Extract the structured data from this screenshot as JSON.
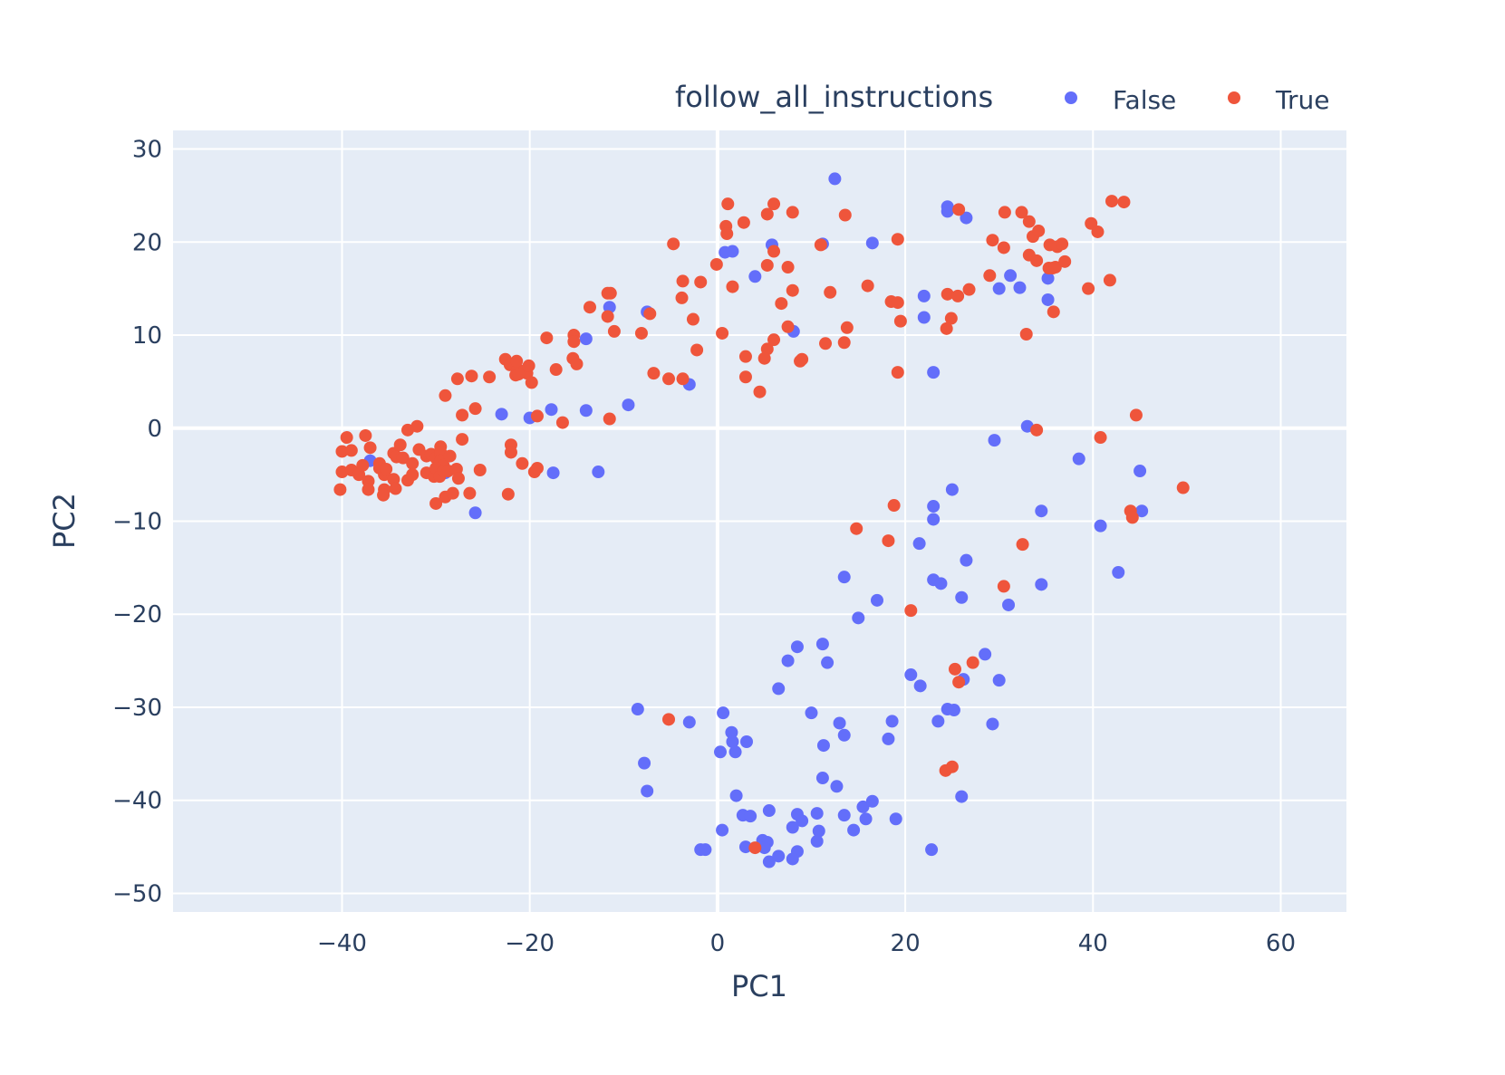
{
  "chart_data": {
    "type": "scatter",
    "title": "",
    "xlabel": "PC1",
    "ylabel": "PC2",
    "xlim": [
      -58,
      67
    ],
    "ylim": [
      -52,
      32
    ],
    "xticks": [
      -40,
      -20,
      0,
      20,
      40,
      60
    ],
    "yticks": [
      30,
      20,
      10,
      0,
      -10,
      -20,
      -30,
      -40,
      -50
    ],
    "xtick_labels": [
      "−40",
      "−20",
      "0",
      "20",
      "40",
      "60"
    ],
    "ytick_labels": [
      "30",
      "20",
      "10",
      "0",
      "−10",
      "−20",
      "−30",
      "−40",
      "−50"
    ],
    "grid": true,
    "legend": {
      "title": "follow_all_instructions",
      "placement": "top-right"
    },
    "series": [
      {
        "name": "False",
        "color": "#636efa",
        "points": [
          [
            12.5,
            26.8
          ],
          [
            24.5,
            23.8
          ],
          [
            24.5,
            23.3
          ],
          [
            26.5,
            22.6
          ],
          [
            5.8,
            19.7
          ],
          [
            11.2,
            19.8
          ],
          [
            16.5,
            19.9
          ],
          [
            0.8,
            18.9
          ],
          [
            1.6,
            19.0
          ],
          [
            4,
            16.3
          ],
          [
            22,
            14.2
          ],
          [
            30,
            15
          ],
          [
            31.2,
            16.4
          ],
          [
            32.2,
            15.1
          ],
          [
            35.2,
            16.1
          ],
          [
            35.2,
            13.8
          ],
          [
            22,
            11.9
          ],
          [
            8.1,
            10.4
          ],
          [
            -11.5,
            13
          ],
          [
            -7.5,
            12.5
          ],
          [
            -14,
            9.6
          ],
          [
            -3,
            4.7
          ],
          [
            23,
            6
          ],
          [
            -23,
            1.5
          ],
          [
            -20,
            1.1
          ],
          [
            -17.7,
            2
          ],
          [
            -14,
            1.9
          ],
          [
            -9.5,
            2.5
          ],
          [
            -17.5,
            -4.8
          ],
          [
            -12.7,
            -4.7
          ],
          [
            -37,
            -3.5
          ],
          [
            -29,
            -4.8
          ],
          [
            -25.8,
            -9.1
          ],
          [
            33,
            0.2
          ],
          [
            29.5,
            -1.3
          ],
          [
            38.5,
            -3.3
          ],
          [
            45,
            -4.6
          ],
          [
            34.5,
            -8.9
          ],
          [
            40.8,
            -10.5
          ],
          [
            45.2,
            -8.9
          ],
          [
            23,
            -8.4
          ],
          [
            23,
            -9.8
          ],
          [
            25,
            -6.6
          ],
          [
            21.5,
            -12.4
          ],
          [
            26.5,
            -14.2
          ],
          [
            13.5,
            -16
          ],
          [
            17,
            -18.5
          ],
          [
            15,
            -20.4
          ],
          [
            23,
            -16.3
          ],
          [
            23.8,
            -16.7
          ],
          [
            26,
            -18.2
          ],
          [
            31,
            -19
          ],
          [
            34.5,
            -16.8
          ],
          [
            42.7,
            -15.5
          ],
          [
            8.5,
            -23.5
          ],
          [
            11.2,
            -23.2
          ],
          [
            7.5,
            -25
          ],
          [
            11.7,
            -25.2
          ],
          [
            6.5,
            -28
          ],
          [
            20.6,
            -26.5
          ],
          [
            21.6,
            -27.7
          ],
          [
            26.2,
            -27
          ],
          [
            28.5,
            -24.3
          ],
          [
            30,
            -27.1
          ],
          [
            -8.5,
            -30.2
          ],
          [
            -3,
            -31.6
          ],
          [
            0.6,
            -30.6
          ],
          [
            10,
            -30.6
          ],
          [
            13,
            -31.7
          ],
          [
            13.5,
            -33
          ],
          [
            18.6,
            -31.5
          ],
          [
            23.5,
            -31.5
          ],
          [
            24.5,
            -30.2
          ],
          [
            25.2,
            -30.3
          ],
          [
            29.3,
            -31.8
          ],
          [
            1.5,
            -32.7
          ],
          [
            1.6,
            -33.7
          ],
          [
            3.1,
            -33.7
          ],
          [
            1.9,
            -34.8
          ],
          [
            0.3,
            -34.8
          ],
          [
            11.3,
            -34.1
          ],
          [
            18.2,
            -33.4
          ],
          [
            -7.8,
            -36
          ],
          [
            -7.5,
            -39
          ],
          [
            11.2,
            -37.6
          ],
          [
            12.7,
            -38.5
          ],
          [
            2,
            -39.5
          ],
          [
            26,
            -39.6
          ],
          [
            2.7,
            -41.6
          ],
          [
            3.5,
            -41.7
          ],
          [
            5.5,
            -41.1
          ],
          [
            8.5,
            -41.5
          ],
          [
            10.6,
            -41.4
          ],
          [
            13.5,
            -41.6
          ],
          [
            15.5,
            -40.7
          ],
          [
            16.5,
            -40.1
          ],
          [
            9,
            -42.2
          ],
          [
            8,
            -42.9
          ],
          [
            15.8,
            -42
          ],
          [
            19,
            -42
          ],
          [
            0.5,
            -43.2
          ],
          [
            10.8,
            -43.3
          ],
          [
            14.5,
            -43.2
          ],
          [
            -1.8,
            -45.3
          ],
          [
            -1.3,
            -45.3
          ],
          [
            3,
            -45
          ],
          [
            4.8,
            -44.3
          ],
          [
            5.3,
            -44.5
          ],
          [
            10.6,
            -44.4
          ],
          [
            5,
            -45.1
          ],
          [
            8.5,
            -45.5
          ],
          [
            6.5,
            -46
          ],
          [
            5.5,
            -46.6
          ],
          [
            8,
            -46.3
          ],
          [
            22.8,
            -45.3
          ]
        ]
      },
      {
        "name": "True",
        "color": "#ef553b",
        "points": [
          [
            1.1,
            24.1
          ],
          [
            6,
            24.1
          ],
          [
            5.3,
            23
          ],
          [
            8,
            23.2
          ],
          [
            13.6,
            22.9
          ],
          [
            0.9,
            21.7
          ],
          [
            1,
            20.9
          ],
          [
            2.8,
            22.1
          ],
          [
            -4.7,
            19.8
          ],
          [
            19.2,
            20.3
          ],
          [
            6,
            19
          ],
          [
            11,
            19.7
          ],
          [
            -0.1,
            17.6
          ],
          [
            5.3,
            17.5
          ],
          [
            7.5,
            17.3
          ],
          [
            -3.7,
            15.8
          ],
          [
            -1.8,
            15.7
          ],
          [
            1.6,
            15.2
          ],
          [
            8,
            14.8
          ],
          [
            12,
            14.6
          ],
          [
            16,
            15.3
          ],
          [
            18.5,
            13.6
          ],
          [
            19.2,
            13.5
          ],
          [
            19.5,
            11.5
          ],
          [
            -11.7,
            14.5
          ],
          [
            -11.4,
            14.5
          ],
          [
            -13.6,
            13
          ],
          [
            -3.8,
            14
          ],
          [
            -7.2,
            12.3
          ],
          [
            -11.7,
            12
          ],
          [
            -2.6,
            11.7
          ],
          [
            -11,
            10.4
          ],
          [
            -8.1,
            10.2
          ],
          [
            6.8,
            13.4
          ],
          [
            7.5,
            10.9
          ],
          [
            -15.3,
            10
          ],
          [
            -15.3,
            9.3
          ],
          [
            -18.2,
            9.7
          ],
          [
            -2.2,
            8.4
          ],
          [
            0.5,
            10.2
          ],
          [
            3,
            7.7
          ],
          [
            5.3,
            8.5
          ],
          [
            5,
            7.5
          ],
          [
            6,
            9.5
          ],
          [
            8.8,
            7.2
          ],
          [
            9,
            7.4
          ],
          [
            11.5,
            9.1
          ],
          [
            13.5,
            9.2
          ],
          [
            13.8,
            10.8
          ],
          [
            19.2,
            6
          ],
          [
            -22.6,
            7.4
          ],
          [
            -22.1,
            6.8
          ],
          [
            -21.3,
            6.3
          ],
          [
            -21.4,
            7.2
          ],
          [
            -21.5,
            5.7
          ],
          [
            -20.5,
            6.2
          ],
          [
            -20.3,
            5.9
          ],
          [
            -20.1,
            6.7
          ],
          [
            -21.2,
            5.8
          ],
          [
            -19.8,
            4.9
          ],
          [
            -17.2,
            6.3
          ],
          [
            -15.4,
            7.5
          ],
          [
            -15,
            6.9
          ],
          [
            -24.3,
            5.5
          ],
          [
            -26.2,
            5.6
          ],
          [
            -27.7,
            5.3
          ],
          [
            -6.8,
            5.9
          ],
          [
            -5.2,
            5.3
          ],
          [
            -3.7,
            5.3
          ],
          [
            3,
            5.5
          ],
          [
            4.5,
            3.9
          ],
          [
            -29,
            3.5
          ],
          [
            -27.2,
            1.4
          ],
          [
            -25.8,
            2.1
          ],
          [
            -19.2,
            1.3
          ],
          [
            -16.5,
            0.6
          ],
          [
            -11.5,
            1
          ],
          [
            -32,
            0.2
          ],
          [
            -33,
            -0.2
          ],
          [
            -39.5,
            -1
          ],
          [
            -37.5,
            -0.8
          ],
          [
            -40,
            -2.5
          ],
          [
            -39,
            -2.4
          ],
          [
            -37,
            -2.1
          ],
          [
            -36,
            -3.8
          ],
          [
            -34.5,
            -2.7
          ],
          [
            -34.2,
            -3.1
          ],
          [
            -33.8,
            -1.8
          ],
          [
            -33.5,
            -3.2
          ],
          [
            -32.5,
            -3.8
          ],
          [
            -31.8,
            -2.3
          ],
          [
            -31,
            -3
          ],
          [
            -30.5,
            -2.8
          ],
          [
            -30,
            -3.2
          ],
          [
            -29.5,
            -2
          ],
          [
            -29.5,
            -2.6
          ],
          [
            -29.5,
            -3.5
          ],
          [
            -29.2,
            -4
          ],
          [
            -28.5,
            -3
          ],
          [
            -27.2,
            -1.2
          ],
          [
            -22,
            -1.8
          ],
          [
            -22,
            -2.6
          ],
          [
            -20.8,
            -3.8
          ],
          [
            -40,
            -4.7
          ],
          [
            -39,
            -4.5
          ],
          [
            -38.2,
            -5
          ],
          [
            -37.8,
            -4
          ],
          [
            -37.2,
            -5.7
          ],
          [
            -36,
            -4.3
          ],
          [
            -35.5,
            -5
          ],
          [
            -35.3,
            -4.4
          ],
          [
            -34.5,
            -5.5
          ],
          [
            -35.5,
            -6.6
          ],
          [
            -34.3,
            -6.5
          ],
          [
            -33,
            -5.6
          ],
          [
            -32.5,
            -5
          ],
          [
            -31,
            -4.8
          ],
          [
            -30.2,
            -5.2
          ],
          [
            -30,
            -4.3
          ],
          [
            -29.6,
            -5.2
          ],
          [
            -29.2,
            -4.6
          ],
          [
            -28.7,
            -4.6
          ],
          [
            -27.8,
            -4.4
          ],
          [
            -27.6,
            -5.4
          ],
          [
            -25.3,
            -4.5
          ],
          [
            -19.5,
            -4.7
          ],
          [
            -19.2,
            -4.3
          ],
          [
            -40.2,
            -6.6
          ],
          [
            -37.2,
            -6.6
          ],
          [
            -35.6,
            -7.2
          ],
          [
            -30,
            -8.1
          ],
          [
            -29,
            -7.4
          ],
          [
            -28.2,
            -7
          ],
          [
            -26.4,
            -7
          ],
          [
            -22.3,
            -7.1
          ],
          [
            24.5,
            14.4
          ],
          [
            25.6,
            14.2
          ],
          [
            26.8,
            14.9
          ],
          [
            24.9,
            11.8
          ],
          [
            24.4,
            10.7
          ],
          [
            29,
            16.4
          ],
          [
            33.2,
            18.6
          ],
          [
            34,
            18
          ],
          [
            35.3,
            17.2
          ],
          [
            35.7,
            17.2
          ],
          [
            36,
            17.3
          ],
          [
            37,
            17.9
          ],
          [
            35.8,
            12.5
          ],
          [
            39.5,
            15
          ],
          [
            41.8,
            15.9
          ],
          [
            29.3,
            20.2
          ],
          [
            30.5,
            19.4
          ],
          [
            33.6,
            20.6
          ],
          [
            34.2,
            21.2
          ],
          [
            35.4,
            19.7
          ],
          [
            36.2,
            19.5
          ],
          [
            36.7,
            19.8
          ],
          [
            39.8,
            22
          ],
          [
            40.5,
            21.1
          ],
          [
            25.7,
            23.5
          ],
          [
            30.6,
            23.2
          ],
          [
            32.4,
            23.2
          ],
          [
            33.2,
            22.2
          ],
          [
            42,
            24.4
          ],
          [
            43.3,
            24.3
          ],
          [
            32.9,
            10.1
          ],
          [
            34,
            -0.2
          ],
          [
            40.8,
            -1
          ],
          [
            44.6,
            1.4
          ],
          [
            49.6,
            -6.4
          ],
          [
            44,
            -8.9
          ],
          [
            44.2,
            -9.6
          ],
          [
            18.8,
            -8.3
          ],
          [
            14.8,
            -10.8
          ],
          [
            18.2,
            -12.1
          ],
          [
            32.5,
            -12.5
          ],
          [
            30.5,
            -17
          ],
          [
            20.6,
            -19.6
          ],
          [
            25.3,
            -25.9
          ],
          [
            25.7,
            -27.3
          ],
          [
            27.2,
            -25.2
          ],
          [
            24.3,
            -36.8
          ],
          [
            25,
            -36.4
          ],
          [
            -5.2,
            -31.3
          ],
          [
            4,
            -45.1
          ]
        ]
      }
    ]
  }
}
